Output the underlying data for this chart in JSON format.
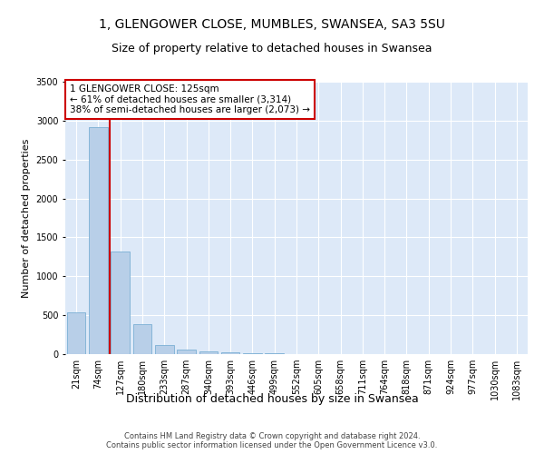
{
  "title1": "1, GLENGOWER CLOSE, MUMBLES, SWANSEA, SA3 5SU",
  "title2": "Size of property relative to detached houses in Swansea",
  "xlabel": "Distribution of detached houses by size in Swansea",
  "ylabel": "Number of detached properties",
  "footnote": "Contains HM Land Registry data © Crown copyright and database right 2024.\nContains public sector information licensed under the Open Government Licence v3.0.",
  "categories": [
    "21sqm",
    "74sqm",
    "127sqm",
    "180sqm",
    "233sqm",
    "287sqm",
    "340sqm",
    "393sqm",
    "446sqm",
    "499sqm",
    "552sqm",
    "605sqm",
    "658sqm",
    "711sqm",
    "764sqm",
    "818sqm",
    "871sqm",
    "924sqm",
    "977sqm",
    "1030sqm",
    "1083sqm"
  ],
  "values": [
    540,
    2920,
    1320,
    390,
    115,
    60,
    35,
    20,
    12,
    8,
    5,
    3,
    2,
    2,
    1,
    1,
    1,
    1,
    0,
    0,
    0
  ],
  "bar_color": "#b8cfe8",
  "bar_edge_color": "#7aafd4",
  "property_line_color": "#cc0000",
  "annotation_text": "1 GLENGOWER CLOSE: 125sqm\n← 61% of detached houses are smaller (3,314)\n38% of semi-detached houses are larger (2,073) →",
  "annotation_box_color": "#ffffff",
  "annotation_box_edge_color": "#cc0000",
  "ylim": [
    0,
    3500
  ],
  "yticks": [
    0,
    500,
    1000,
    1500,
    2000,
    2500,
    3000,
    3500
  ],
  "plot_background_color": "#dde9f8",
  "title1_fontsize": 10,
  "title2_fontsize": 9,
  "xlabel_fontsize": 9,
  "ylabel_fontsize": 8,
  "tick_fontsize": 7,
  "annotation_fontsize": 7.5,
  "footnote_fontsize": 6
}
